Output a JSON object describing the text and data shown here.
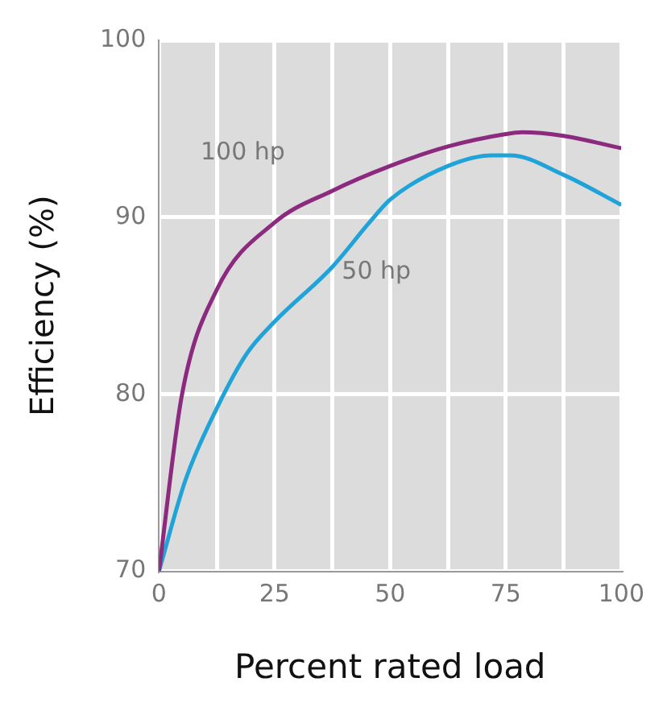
{
  "chart_data": {
    "type": "line",
    "xlabel": "Percent rated load",
    "ylabel": "Efficiency (%)",
    "xlim": [
      0,
      100
    ],
    "xticks": [
      0,
      {
        "value": 12.5,
        "label": null
      },
      25,
      {
        "value": 37.5,
        "label": null
      },
      50,
      {
        "value": 62.5,
        "label": null
      },
      75,
      {
        "value": 87.5,
        "label": null
      },
      100
    ],
    "ylim": [
      70,
      100
    ],
    "yticks": [
      70,
      80,
      90,
      100
    ],
    "grid": true,
    "legend": false,
    "marker": "none",
    "line_style": "solid",
    "series": [
      {
        "name": "100 hp",
        "color": "#8b2a7e",
        "x": [
          0,
          5,
          12.5,
          25,
          37.5,
          50,
          62.5,
          75,
          78.5,
          87.5,
          100
        ],
        "values": [
          70,
          80,
          85.9,
          89.7,
          91.5,
          92.9,
          94,
          94.7,
          94.8,
          94.6,
          93.9
        ]
      },
      {
        "name": "50 hp",
        "color": "#1fa3d8",
        "x": [
          0,
          5.8,
          12.5,
          19,
          25,
          37.5,
          45.5,
          50,
          62.5,
          72,
          76,
          87.5,
          100
        ],
        "values": [
          70,
          75.2,
          79.2,
          82.3,
          84.1,
          87.2,
          89.7,
          91,
          92.9,
          93.5,
          93.5,
          92.4,
          90.7
        ]
      }
    ]
  }
}
